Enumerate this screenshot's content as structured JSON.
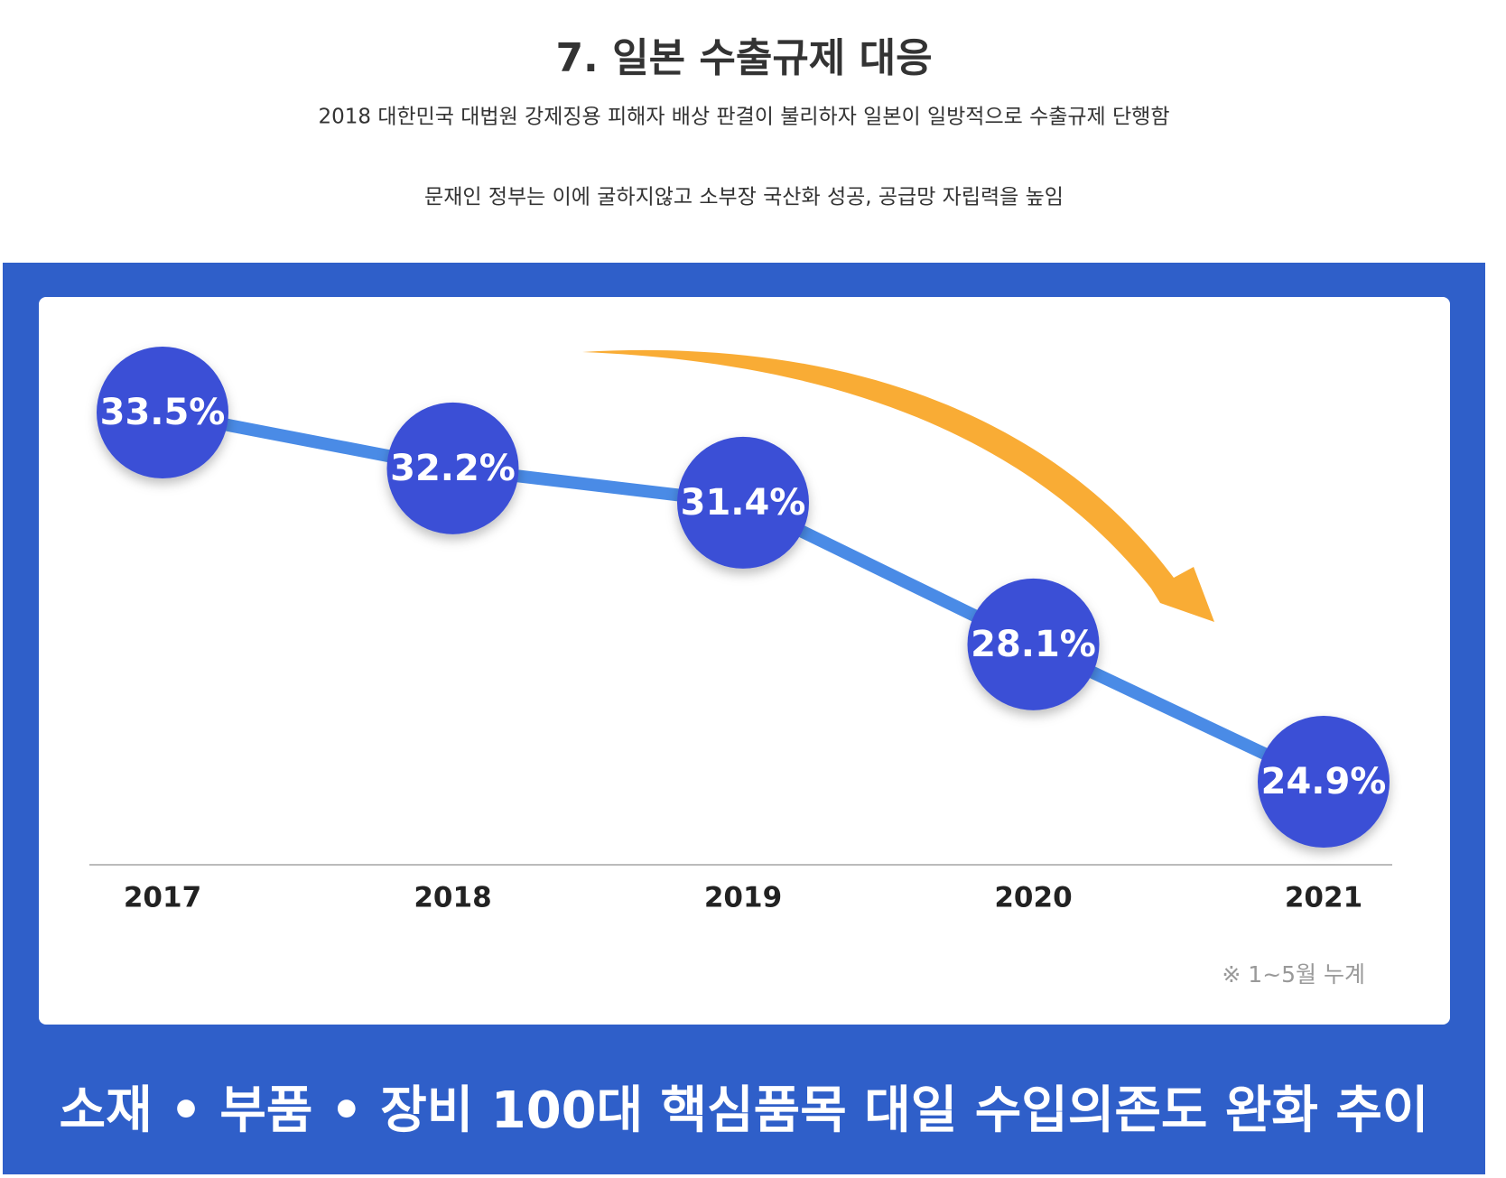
{
  "header": {
    "title": "7. 일본 수출규제 대응",
    "lines": [
      "2018 대한민국 대법원 강제징용 피해자 배상 판결이 불리하자 일본이 일방적으로 수출규제 단행함",
      "문재인 정부는 이에 굴하지않고 소부장 국산화 성공, 공급망 자립력을 높임"
    ]
  },
  "chart_data": {
    "type": "line",
    "title": "소재 • 부품 • 장비 100대 핵심품목 대일 수입의존도 완화 추이",
    "categories": [
      "2017",
      "2018",
      "2019",
      "2020",
      "2021"
    ],
    "values": [
      33.5,
      32.2,
      31.4,
      28.1,
      24.9
    ],
    "value_labels": [
      "33.5%",
      "32.2%",
      "31.4%",
      "28.1%",
      "24.9%"
    ],
    "color": "#4a8be6",
    "marker_color": "#3a4fd6",
    "note": "※ 1~5월 누계"
  }
}
